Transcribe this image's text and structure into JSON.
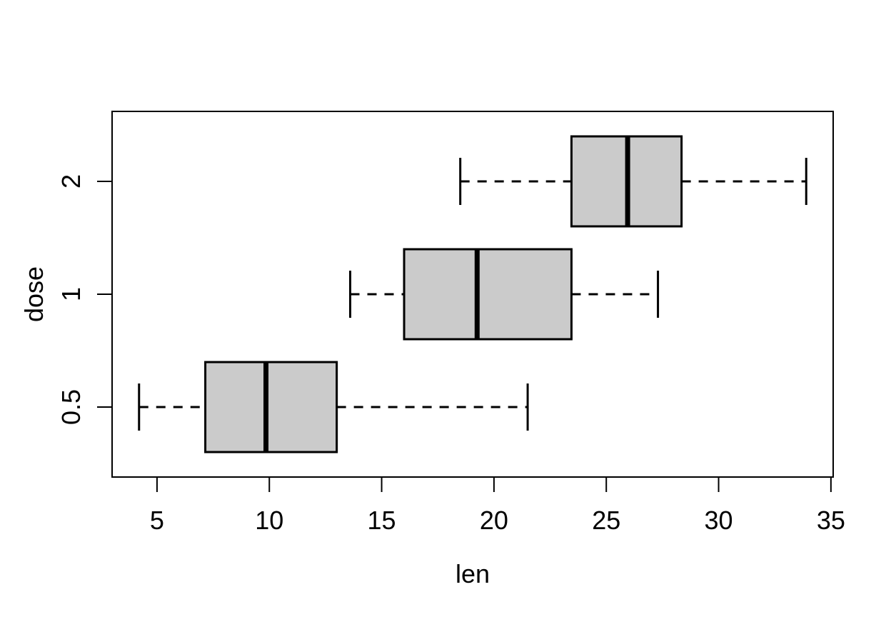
{
  "chart_data": {
    "type": "boxplot",
    "orientation": "horizontal",
    "title": "",
    "xlabel": "len",
    "ylabel": "dose",
    "x_ticks": [
      5,
      10,
      15,
      20,
      25,
      30,
      35
    ],
    "xlim": [
      3.0,
      35.1
    ],
    "ylim": [
      0.38,
      3.62
    ],
    "categories": [
      "0.5",
      "1",
      "2"
    ],
    "groups": [
      {
        "label": "0.5",
        "position": 1,
        "whisker_low": 4.2,
        "q1": 7.15,
        "median": 9.85,
        "q3": 13.0,
        "whisker_high": 21.5,
        "outliers": []
      },
      {
        "label": "1",
        "position": 2,
        "whisker_low": 13.6,
        "q1": 16.0,
        "median": 19.25,
        "q3": 23.45,
        "whisker_high": 27.3,
        "outliers": []
      },
      {
        "label": "2",
        "position": 3,
        "whisker_low": 18.5,
        "q1": 23.45,
        "median": 25.95,
        "q3": 28.35,
        "whisker_high": 33.9,
        "outliers": []
      }
    ],
    "grid": false,
    "legend": null,
    "colors": {
      "box_fill": "#cbcbcb",
      "stroke": "#000000",
      "background": "#ffffff"
    }
  }
}
